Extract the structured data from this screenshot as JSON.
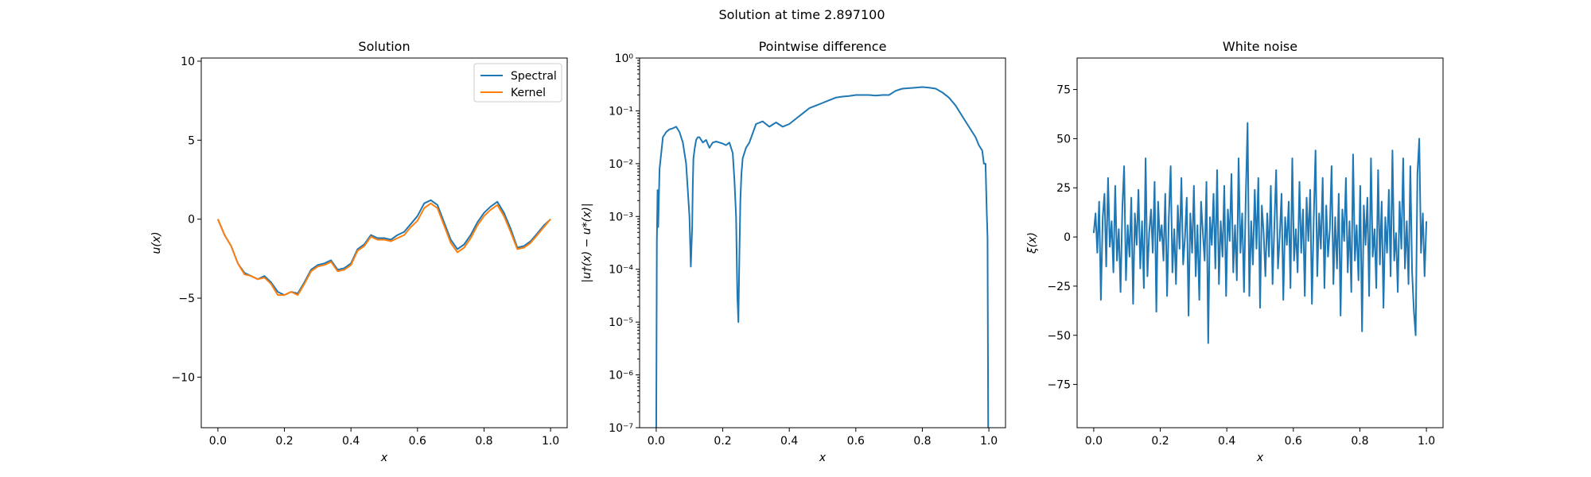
{
  "suptitle": "Solution at time 2.897100",
  "chart_data": [
    {
      "type": "line",
      "title": "Solution",
      "xlabel": "x",
      "ylabel": "u(x)",
      "xlim": [
        -0.05,
        1.05
      ],
      "ylim": [
        -13.2,
        10.2
      ],
      "xticks": [
        "0.0",
        "0.2",
        "0.4",
        "0.6",
        "0.8",
        "1.0"
      ],
      "xtick_values": [
        0,
        0.2,
        0.4,
        0.6,
        0.8,
        1.0
      ],
      "yticks": [
        "−10",
        "−5",
        "0",
        "5",
        "10"
      ],
      "ytick_values": [
        -10,
        -5,
        0,
        5,
        10
      ],
      "legend": "top-right",
      "series": [
        {
          "name": "Spectral",
          "color": "#1f77b4",
          "x": [
            0.0,
            0.02,
            0.04,
            0.06,
            0.08,
            0.1,
            0.12,
            0.14,
            0.16,
            0.18,
            0.2,
            0.22,
            0.24,
            0.26,
            0.28,
            0.3,
            0.32,
            0.34,
            0.36,
            0.38,
            0.4,
            0.42,
            0.44,
            0.46,
            0.48,
            0.5,
            0.52,
            0.54,
            0.56,
            0.58,
            0.6,
            0.62,
            0.64,
            0.66,
            0.68,
            0.7,
            0.72,
            0.74,
            0.76,
            0.78,
            0.8,
            0.82,
            0.84,
            0.86,
            0.88,
            0.9,
            0.92,
            0.94,
            0.96,
            0.98,
            1.0
          ],
          "y": [
            0.0,
            -1.0,
            -1.7,
            -2.8,
            -3.4,
            -3.6,
            -3.8,
            -3.6,
            -4.0,
            -4.6,
            -4.8,
            -4.6,
            -4.7,
            -4.0,
            -3.2,
            -2.9,
            -2.8,
            -2.6,
            -3.2,
            -3.1,
            -2.8,
            -1.9,
            -1.6,
            -1.0,
            -1.2,
            -1.2,
            -1.3,
            -1.0,
            -0.8,
            -0.3,
            0.2,
            1.0,
            1.2,
            0.9,
            -0.2,
            -1.3,
            -1.9,
            -1.6,
            -1.0,
            -0.2,
            0.4,
            0.8,
            1.1,
            0.4,
            -0.6,
            -1.8,
            -1.7,
            -1.4,
            -0.9,
            -0.4,
            0.0
          ]
        },
        {
          "name": "Kernel",
          "color": "#ff7f0e",
          "x": [
            0.0,
            0.02,
            0.04,
            0.06,
            0.08,
            0.1,
            0.12,
            0.14,
            0.16,
            0.18,
            0.2,
            0.22,
            0.24,
            0.26,
            0.28,
            0.3,
            0.32,
            0.34,
            0.36,
            0.38,
            0.4,
            0.42,
            0.44,
            0.46,
            0.48,
            0.5,
            0.52,
            0.54,
            0.56,
            0.58,
            0.6,
            0.62,
            0.64,
            0.66,
            0.68,
            0.7,
            0.72,
            0.74,
            0.76,
            0.78,
            0.8,
            0.82,
            0.84,
            0.86,
            0.88,
            0.9,
            0.92,
            0.94,
            0.96,
            0.98,
            1.0
          ],
          "y": [
            0.0,
            -1.0,
            -1.7,
            -2.8,
            -3.5,
            -3.6,
            -3.8,
            -3.7,
            -4.1,
            -4.8,
            -4.8,
            -4.6,
            -4.8,
            -4.1,
            -3.3,
            -3.0,
            -2.9,
            -2.7,
            -3.3,
            -3.2,
            -2.9,
            -2.0,
            -1.7,
            -1.1,
            -1.3,
            -1.3,
            -1.4,
            -1.2,
            -1.0,
            -0.5,
            -0.1,
            0.7,
            1.0,
            0.7,
            -0.4,
            -1.5,
            -2.1,
            -1.8,
            -1.2,
            -0.4,
            0.2,
            0.6,
            0.9,
            0.2,
            -0.8,
            -1.9,
            -1.8,
            -1.5,
            -1.0,
            -0.5,
            0.0
          ]
        }
      ]
    },
    {
      "type": "line",
      "title": "Pointwise difference",
      "xlabel": "x",
      "ylabel": "|u†(x) − u*(x)|",
      "yscale": "log",
      "xlim": [
        -0.05,
        1.05
      ],
      "ylim_exp": [
        -7,
        0
      ],
      "xticks": [
        "0.0",
        "0.2",
        "0.4",
        "0.6",
        "0.8",
        "1.0"
      ],
      "xtick_values": [
        0,
        0.2,
        0.4,
        0.6,
        0.8,
        1.0
      ],
      "yticks": [
        "10⁻⁷",
        "10⁻⁶",
        "10⁻⁵",
        "10⁻⁴",
        "10⁻³",
        "10⁻²",
        "10⁻¹",
        "10⁰"
      ],
      "ytick_values": [
        -7,
        -6,
        -5,
        -4,
        -3,
        -2,
        -1,
        0
      ],
      "series": [
        {
          "name": "",
          "color": "#1f77b4",
          "x": [
            0.0,
            0.002,
            0.004,
            0.006,
            0.01,
            0.015,
            0.02,
            0.03,
            0.04,
            0.05,
            0.06,
            0.07,
            0.08,
            0.09,
            0.095,
            0.1,
            0.104,
            0.108,
            0.11,
            0.112,
            0.116,
            0.12,
            0.125,
            0.13,
            0.14,
            0.15,
            0.16,
            0.17,
            0.18,
            0.19,
            0.2,
            0.21,
            0.22,
            0.23,
            0.235,
            0.24,
            0.244,
            0.247,
            0.25,
            0.253,
            0.256,
            0.26,
            0.27,
            0.28,
            0.3,
            0.32,
            0.34,
            0.36,
            0.38,
            0.4,
            0.42,
            0.44,
            0.46,
            0.48,
            0.5,
            0.52,
            0.54,
            0.56,
            0.58,
            0.6,
            0.62,
            0.64,
            0.66,
            0.68,
            0.7,
            0.72,
            0.74,
            0.76,
            0.78,
            0.8,
            0.82,
            0.84,
            0.86,
            0.88,
            0.9,
            0.92,
            0.94,
            0.96,
            0.97,
            0.98,
            0.985,
            0.99,
            0.993,
            0.996,
            0.998,
            1.0
          ],
          "logy": [
            -7.2,
            -3.5,
            -2.5,
            -3.2,
            -2.1,
            -1.8,
            -1.5,
            -1.4,
            -1.35,
            -1.33,
            -1.3,
            -1.4,
            -1.6,
            -2.0,
            -2.5,
            -3.0,
            -3.95,
            -3.2,
            -2.4,
            -1.9,
            -1.7,
            -1.55,
            -1.5,
            -1.5,
            -1.6,
            -1.55,
            -1.7,
            -1.6,
            -1.58,
            -1.6,
            -1.62,
            -1.65,
            -1.6,
            -1.8,
            -2.3,
            -3.0,
            -4.5,
            -5.0,
            -3.7,
            -2.7,
            -2.2,
            -1.9,
            -1.7,
            -1.6,
            -1.25,
            -1.2,
            -1.3,
            -1.22,
            -1.3,
            -1.25,
            -1.15,
            -1.05,
            -0.95,
            -0.9,
            -0.85,
            -0.8,
            -0.75,
            -0.73,
            -0.72,
            -0.7,
            -0.7,
            -0.7,
            -0.71,
            -0.7,
            -0.7,
            -0.62,
            -0.58,
            -0.57,
            -0.56,
            -0.55,
            -0.56,
            -0.58,
            -0.65,
            -0.75,
            -0.9,
            -1.1,
            -1.3,
            -1.5,
            -1.65,
            -1.75,
            -2.0,
            -2.0,
            -2.8,
            -3.4,
            -7.2,
            -7.2
          ]
        }
      ]
    },
    {
      "type": "line",
      "title": "White noise",
      "xlabel": "x",
      "ylabel": "ξ(x)",
      "xlim": [
        -0.05,
        1.05
      ],
      "ylim": [
        -97,
        91
      ],
      "xticks": [
        "0.0",
        "0.2",
        "0.4",
        "0.6",
        "0.8",
        "1.0"
      ],
      "xtick_values": [
        0,
        0.2,
        0.4,
        0.6,
        0.8,
        1.0
      ],
      "yticks": [
        "−75",
        "−50",
        "−25",
        "0",
        "25",
        "50",
        "75"
      ],
      "ytick_values": [
        -75,
        -50,
        -25,
        0,
        25,
        50,
        75
      ],
      "series": [
        {
          "name": "",
          "color": "#1f77b4",
          "x_start": 0.0,
          "x_end": 1.0,
          "y": [
            2,
            12,
            -8,
            18,
            -32,
            10,
            22,
            -15,
            30,
            -5,
            8,
            -18,
            26,
            -12,
            4,
            -28,
            15,
            36,
            -22,
            6,
            -10,
            20,
            -34,
            12,
            -4,
            24,
            -16,
            8,
            -26,
            40,
            -20,
            2,
            14,
            -8,
            28,
            -38,
            18,
            -2,
            6,
            -12,
            22,
            -30,
            10,
            36,
            -18,
            4,
            -24,
            16,
            -6,
            30,
            -14,
            0,
            20,
            -40,
            12,
            -8,
            26,
            -20,
            6,
            -32,
            18,
            2,
            -12,
            28,
            -54,
            10,
            -4,
            22,
            -16,
            34,
            -24,
            8,
            -10,
            26,
            -30,
            14,
            -2,
            32,
            -18,
            6,
            -22,
            40,
            -8,
            12,
            -28,
            20,
            58,
            -30,
            8,
            -14,
            24,
            -6,
            30,
            -36,
            16,
            2,
            -20,
            12,
            -10,
            26,
            -24,
            6,
            34,
            -16,
            0,
            22,
            -32,
            10,
            -4,
            18,
            -26,
            40,
            -12,
            4,
            -18,
            28,
            -8,
            14,
            -30,
            20,
            -2,
            24,
            -34,
            8,
            44,
            -20,
            12,
            -6,
            30,
            -26,
            16,
            -10,
            4,
            36,
            -24,
            10,
            -16,
            22,
            -40,
            14,
            -2,
            30,
            -18,
            8,
            -28,
            42,
            -12,
            6,
            -22,
            26,
            -48,
            16,
            -4,
            20,
            -30,
            40,
            -10,
            4,
            -26,
            34,
            -14,
            18,
            -36,
            10,
            -8,
            24,
            -20,
            44,
            -12,
            2,
            -28,
            18,
            -6,
            40,
            -16,
            8,
            -24,
            36,
            -18,
            -38,
            -50,
            32,
            50,
            -8,
            12,
            -20,
            8
          ]
        }
      ]
    }
  ]
}
